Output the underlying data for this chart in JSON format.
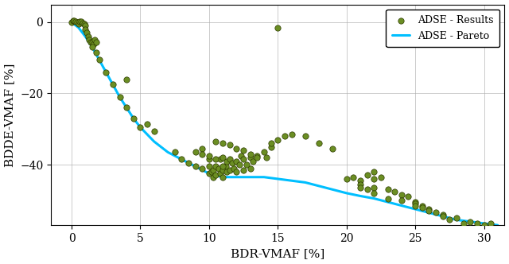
{
  "title": "",
  "xlabel": "BDR-VMAF [%]",
  "ylabel": "BDDE-VMAF [%]",
  "xlim": [
    -1.5,
    31.5
  ],
  "ylim": [
    -57,
    5
  ],
  "xticks": [
    0,
    5,
    10,
    15,
    20,
    25,
    30
  ],
  "yticks": [
    0,
    -20,
    -40
  ],
  "scatter_color": "#6b8e23",
  "scatter_edgecolor": "#2d3a00",
  "pareto_color": "#00bfff",
  "pareto_linewidth": 2.2,
  "scatter_size": 28,
  "legend_labels": [
    "ADSE - Results",
    "ADSE - Pareto"
  ],
  "pareto_x": [
    0.0,
    0.5,
    1.0,
    1.5,
    2.0,
    2.5,
    3.0,
    3.5,
    4.0,
    4.5,
    5.0,
    5.5,
    6.0,
    6.5,
    7.0,
    7.5,
    8.0,
    8.5,
    9.0,
    9.5,
    10.0,
    10.5,
    11.0,
    11.5,
    12.0,
    12.5,
    13.0,
    13.5,
    14.0,
    15.0,
    16.0,
    17.0,
    18.0,
    19.0,
    20.0,
    21.0,
    22.0,
    23.0,
    24.0,
    25.0,
    26.0,
    27.0,
    28.0,
    29.0,
    30.0,
    31.0
  ],
  "pareto_y": [
    0.0,
    -1.5,
    -4.0,
    -7.0,
    -10.5,
    -14.0,
    -17.5,
    -21.0,
    -24.0,
    -27.0,
    -29.5,
    -31.5,
    -33.5,
    -35.0,
    -36.5,
    -37.5,
    -38.5,
    -39.5,
    -40.5,
    -41.5,
    -42.5,
    -43.0,
    -43.5,
    -43.5,
    -43.5,
    -43.5,
    -43.5,
    -43.5,
    -43.5,
    -44.0,
    -44.5,
    -45.0,
    -46.0,
    -47.0,
    -48.0,
    -48.8,
    -49.5,
    -50.5,
    -51.5,
    -52.5,
    -53.5,
    -54.5,
    -55.5,
    -56.0,
    -56.5,
    -57.0
  ],
  "scatter_x": [
    0.0,
    0.1,
    0.2,
    0.3,
    0.4,
    0.5,
    0.6,
    0.7,
    0.8,
    0.9,
    1.0,
    1.0,
    1.1,
    1.2,
    1.3,
    1.4,
    1.5,
    1.6,
    1.7,
    1.8,
    1.5,
    1.8,
    2.0,
    2.5,
    3.0,
    3.5,
    4.0,
    4.5,
    5.0,
    4.0,
    5.5,
    6.0,
    7.5,
    8.0,
    8.5,
    9.0,
    9.5,
    9.5,
    10.0,
    10.0,
    10.0,
    10.2,
    10.3,
    10.3,
    10.5,
    10.5,
    10.7,
    10.8,
    10.8,
    11.0,
    11.0,
    11.0,
    11.2,
    11.3,
    11.3,
    11.5,
    11.5,
    11.7,
    11.8,
    12.0,
    12.0,
    12.2,
    12.3,
    12.5,
    12.5,
    12.7,
    13.0,
    13.0,
    13.2,
    13.5,
    14.0,
    14.2,
    14.5,
    10.5,
    11.0,
    11.5,
    12.0,
    12.5,
    13.0,
    13.5,
    9.0,
    9.5,
    10.0,
    10.5,
    11.0,
    14.5,
    15.0,
    15.5,
    16.0,
    17.0,
    18.0,
    19.0,
    20.0,
    20.5,
    21.0,
    21.5,
    22.0,
    22.0,
    22.5,
    21.0,
    22.0,
    23.0,
    23.5,
    24.0,
    24.5,
    25.0,
    25.0,
    25.5,
    25.5,
    26.0,
    26.5,
    27.0,
    27.5,
    28.0,
    28.5,
    29.0,
    29.5,
    30.0,
    30.5,
    21.0,
    21.5,
    22.0,
    23.0,
    24.0,
    25.0,
    26.0,
    27.0,
    15.0
  ],
  "scatter_y": [
    0.0,
    0.5,
    0.5,
    0.2,
    0.0,
    -0.5,
    0.2,
    0.1,
    -0.3,
    -0.5,
    -1.0,
    -2.0,
    -3.0,
    -4.0,
    -5.0,
    -5.5,
    -5.5,
    -6.0,
    -5.0,
    -5.5,
    -7.0,
    -8.5,
    -10.5,
    -14.0,
    -17.5,
    -21.0,
    -24.0,
    -27.0,
    -29.5,
    -16.0,
    -28.5,
    -30.5,
    -36.5,
    -38.5,
    -39.5,
    -40.5,
    -41.0,
    -35.5,
    -38.5,
    -40.5,
    -42.5,
    -42.0,
    -41.5,
    -43.5,
    -40.5,
    -43.0,
    -41.0,
    -38.5,
    -42.5,
    -38.0,
    -41.5,
    -43.5,
    -40.5,
    -39.0,
    -42.0,
    -38.5,
    -41.5,
    -39.5,
    -41.0,
    -39.0,
    -42.0,
    -40.0,
    -37.5,
    -38.5,
    -41.5,
    -40.0,
    -38.0,
    -41.0,
    -39.0,
    -37.5,
    -36.5,
    -38.0,
    -35.0,
    -33.5,
    -34.0,
    -34.5,
    -35.5,
    -36.0,
    -37.0,
    -38.0,
    -36.5,
    -37.0,
    -37.5,
    -38.5,
    -40.5,
    -34.0,
    -33.0,
    -32.0,
    -31.5,
    -32.0,
    -34.0,
    -35.5,
    -44.0,
    -43.5,
    -44.5,
    -43.0,
    -44.0,
    -42.0,
    -43.5,
    -45.5,
    -46.5,
    -47.0,
    -47.5,
    -48.5,
    -49.0,
    -50.5,
    -51.0,
    -51.5,
    -52.0,
    -52.5,
    -53.5,
    -54.0,
    -55.5,
    -55.0,
    -56.5,
    -56.0,
    -56.5,
    -57.0,
    -56.5,
    -46.5,
    -47.0,
    -48.0,
    -49.5,
    -50.0,
    -51.5,
    -53.0,
    -54.5,
    -1.5
  ]
}
